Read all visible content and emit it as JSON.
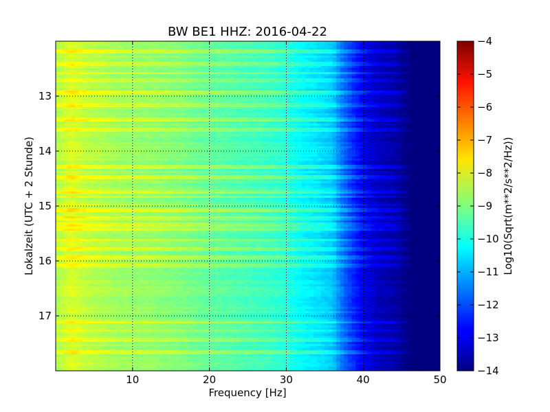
{
  "chart_data": {
    "type": "heatmap",
    "title": "BW BE1 HHZ: 2016-04-22",
    "xlabel": "Frequency [Hz]",
    "ylabel": "Lokalzeit (UTC + 2 Stunde)",
    "colorbar_label": "Log10(Sqrt(m**2/s**2/Hz))",
    "xlim": [
      0,
      50
    ],
    "ylim": [
      18,
      12
    ],
    "x_ticks": [
      10,
      20,
      30,
      40,
      50
    ],
    "x_tick_labels": [
      "10",
      "20",
      "30",
      "40",
      "50"
    ],
    "y_ticks": [
      13,
      14,
      15,
      16,
      17
    ],
    "y_tick_labels": [
      "13",
      "14",
      "15",
      "16",
      "17"
    ],
    "colorbar_ticks": [
      -4,
      -5,
      -6,
      -7,
      -8,
      -9,
      -10,
      -11,
      -12,
      -13,
      -14
    ],
    "colorbar_tick_labels": [
      "−4",
      "−5",
      "−6",
      "−7",
      "−8",
      "−9",
      "−10",
      "−11",
      "−12",
      "−13",
      "−14"
    ],
    "color_range": [
      -14,
      -4
    ],
    "colormap": "jet",
    "grid": true,
    "spectrum_profile": {
      "frequency_hz": [
        0,
        2,
        4,
        8,
        12,
        16,
        20,
        24,
        28,
        30,
        32,
        34,
        36,
        37,
        38,
        39,
        40,
        41,
        42,
        44,
        46,
        50
      ],
      "log_psd": [
        -8.6,
        -8.1,
        -8.4,
        -8.7,
        -8.8,
        -9.0,
        -9.3,
        -9.5,
        -9.7,
        -9.9,
        -10.3,
        -10.5,
        -10.8,
        -11.5,
        -12.0,
        -12.5,
        -12.9,
        -13.2,
        -13.4,
        -13.6,
        -14.0,
        -14.0
      ]
    },
    "bright_bands_hour": [
      12.19,
      12.42,
      12.58,
      12.72,
      12.94,
      13.15,
      13.43,
      13.62,
      14.28,
      14.46,
      14.73,
      14.83,
      14.98,
      15.09,
      15.23,
      15.34,
      15.42,
      15.62,
      15.79,
      15.94,
      16.08,
      17.12,
      17.27,
      17.43,
      17.65
    ]
  }
}
